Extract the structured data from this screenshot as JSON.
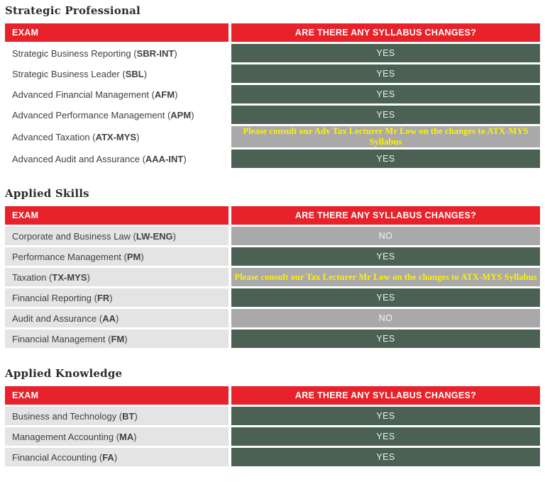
{
  "colors": {
    "header_red": "#e8222b",
    "yes_green": "#4b6154",
    "no_gray": "#a9a9a9",
    "row_light_gray": "#e4e4e4",
    "note_yellow": "#fff200",
    "body_text": "#414042"
  },
  "tables": [
    {
      "title": "Strategic Professional",
      "columns": [
        "EXAM",
        "ARE THERE ANY SYLLABUS CHANGES?"
      ],
      "rows": [
        {
          "prefix": "Strategic Business Reporting (",
          "code": "SBR-INT",
          "suffix": ")",
          "answer": "YES",
          "type": "yes"
        },
        {
          "prefix": "Strategic Business Leader (",
          "code": "SBL",
          "suffix": ")",
          "answer": "YES",
          "type": "yes"
        },
        {
          "prefix": "Advanced Financial Management (",
          "code": "AFM",
          "suffix": ")",
          "answer": "YES",
          "type": "yes"
        },
        {
          "prefix": "Advanced Performance Management (",
          "code": "APM",
          "suffix": ")",
          "answer": "YES",
          "type": "yes"
        },
        {
          "prefix": "Advanced Taxation (",
          "code": "ATX-MYS",
          "suffix": ")",
          "answer": "Please consult our Adv Tax Lecturer Mr Low on the changes to ATX-MYS Syllabus",
          "type": "note"
        },
        {
          "prefix": "Advanced Audit and Assurance (",
          "code": "AAA-INT",
          "suffix": ")",
          "answer": "YES",
          "type": "yes"
        }
      ]
    },
    {
      "title": "Applied Skills",
      "columns": [
        "EXAM",
        "ARE THERE ANY SYLLABUS CHANGES?"
      ],
      "rows": [
        {
          "prefix": "Corporate and Business Law (",
          "code": "LW-ENG",
          "suffix": ")",
          "answer": "NO",
          "type": "no"
        },
        {
          "prefix": "Performance Management (",
          "code": "PM",
          "suffix": ")",
          "answer": "YES",
          "type": "yes"
        },
        {
          "prefix": "Taxation (",
          "code": "TX-MYS",
          "suffix": ")",
          "answer": "Please consult our Tax Lecturer Mr Low on the changes to ATX-MYS Syllabus",
          "type": "note"
        },
        {
          "prefix": "Financial Reporting (",
          "code": "FR",
          "suffix": ")",
          "answer": "YES",
          "type": "yes"
        },
        {
          "prefix": "Audit and Assurance (",
          "code": "AA",
          "suffix": ")",
          "answer": "NO",
          "type": "no"
        },
        {
          "prefix": "Financial Management (",
          "code": "FM",
          "suffix": ")",
          "answer": "YES",
          "type": "yes"
        }
      ]
    },
    {
      "title": "Applied Knowledge",
      "columns": [
        "EXAM",
        "ARE THERE ANY SYLLABUS CHANGES?"
      ],
      "rows": [
        {
          "prefix": "Business and Technology (",
          "code": "BT",
          "suffix": ")",
          "answer": "YES",
          "type": "yes"
        },
        {
          "prefix": "Management Accounting (",
          "code": "MA",
          "suffix": ")",
          "answer": "YES",
          "type": "yes"
        },
        {
          "prefix": "Financial Accounting (",
          "code": "FA",
          "suffix": ")",
          "answer": "YES",
          "type": "yes"
        }
      ]
    }
  ]
}
